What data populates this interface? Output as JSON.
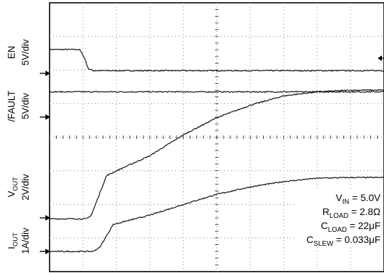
{
  "chart_data": {
    "type": "line",
    "title": "",
    "grid": true,
    "x_divisions": 10,
    "y_divisions": 8,
    "channels": [
      {
        "label_main": "EN",
        "label_scale": "5V/div"
      },
      {
        "label_main": "/FAULT",
        "label_scale": "5V/div"
      },
      {
        "label_main_base": "V",
        "label_main_sub": "OUT",
        "label_main_suffix": "",
        "label_scale": "2V/div"
      },
      {
        "label_main_base": "I",
        "label_main_sub": "OUT",
        "label_main_suffix": "",
        "label_scale": "1A/div"
      }
    ],
    "annotations": [
      {
        "base": "V",
        "sub": "IN",
        "value": " = 5.0V"
      },
      {
        "base": "R",
        "sub": "LOAD",
        "value": " = 2.8Ω"
      },
      {
        "base": "C",
        "sub": "LOAD",
        "value": " = 22μF"
      },
      {
        "base": "C",
        "sub": "SLEW",
        "value": " = 0.033μF"
      }
    ],
    "series": [
      {
        "name": "EN",
        "x": [
          0,
          0.9,
          1.05,
          1.15,
          1.3,
          10
        ],
        "y": [
          6.61,
          6.61,
          6.35,
          6.05,
          5.98,
          5.98
        ]
      },
      {
        "name": "/FAULT",
        "x": [
          0,
          10
        ],
        "y": [
          5.35,
          5.35
        ]
      },
      {
        "name": "VOUT",
        "x": [
          0,
          1.1,
          1.25,
          1.7,
          2.0,
          3.0,
          4.0,
          5.0,
          6.0,
          7.0,
          8.0,
          9.0,
          10
        ],
        "y": [
          1.57,
          1.57,
          1.68,
          2.85,
          3.0,
          3.45,
          4.07,
          4.58,
          4.95,
          5.23,
          5.35,
          5.4,
          5.4
        ]
      },
      {
        "name": "IOUT",
        "x": [
          0,
          1.3,
          1.5,
          1.9,
          2.2,
          3.0,
          4.0,
          5.0,
          6.0,
          7.0,
          8.0,
          9.0,
          10
        ],
        "y": [
          0.6,
          0.6,
          0.72,
          1.4,
          1.48,
          1.68,
          2.0,
          2.3,
          2.52,
          2.68,
          2.78,
          2.8,
          2.8
        ]
      }
    ],
    "ground_markers": [
      {
        "series": "EN",
        "y": 5.9
      },
      {
        "series": "/FAULT",
        "y": 4.6
      },
      {
        "series": "VOUT",
        "y": 1.6
      },
      {
        "series": "IOUT",
        "y": 0.6
      }
    ],
    "trigger_marker_y": 6.35
  }
}
